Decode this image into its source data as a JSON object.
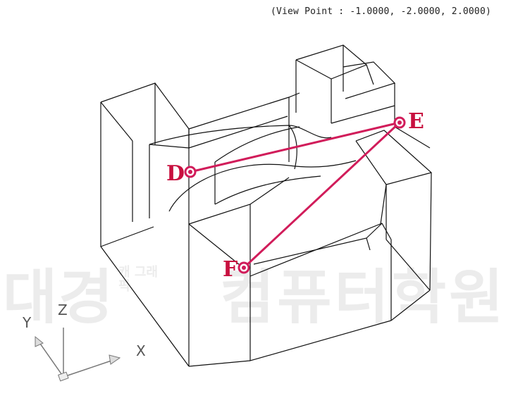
{
  "view_point": "(View Point : -1.0000, -2.0000, 2.0000)",
  "watermark": {
    "main": "대경",
    "sub": "캐 그래픽",
    "right": "컴퓨터학원"
  },
  "points": {
    "D": "D",
    "E": "E",
    "F": "F"
  },
  "ucs_icon": {
    "x_label": "X",
    "y_label": "Y",
    "z_label": "Z"
  },
  "colors": {
    "accent": "#d11c5a",
    "label": "#c8103f",
    "edge": "#111111"
  }
}
